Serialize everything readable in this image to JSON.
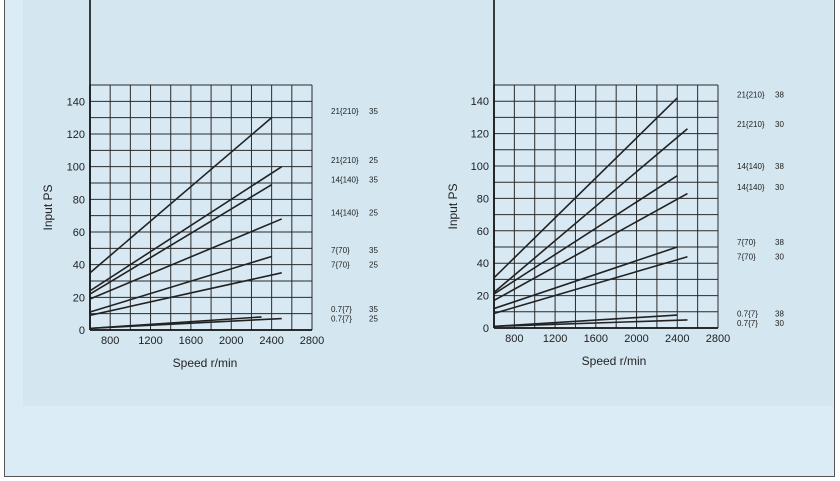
{
  "chart_data": [
    {
      "type": "line",
      "xlabel": "Speed r/min",
      "ylabel": "Input PS",
      "xticks": [
        800,
        1200,
        1600,
        2000,
        2400,
        2800
      ],
      "yticks": [
        0,
        20,
        40,
        60,
        80,
        100,
        120,
        140
      ],
      "xlim": [
        600,
        2800
      ],
      "ylim": [
        0,
        150
      ],
      "grid": true,
      "series": [
        {
          "name": "21{210} 35",
          "x": [
            600,
            2400
          ],
          "y": [
            35,
            130
          ]
        },
        {
          "name": "21{210} 25",
          "x": [
            600,
            2500
          ],
          "y": [
            24,
            100
          ]
        },
        {
          "name": "14{140} 35",
          "x": [
            600,
            2400
          ],
          "y": [
            22,
            89
          ]
        },
        {
          "name": "14{140} 25",
          "x": [
            600,
            2500
          ],
          "y": [
            19,
            68
          ]
        },
        {
          "name": "7{70} 35",
          "x": [
            600,
            2400
          ],
          "y": [
            11,
            45
          ]
        },
        {
          "name": "7{70} 25",
          "x": [
            600,
            2500
          ],
          "y": [
            9,
            35
          ]
        },
        {
          "name": "0.7{7} 35",
          "x": [
            600,
            2300
          ],
          "y": [
            1,
            8
          ]
        },
        {
          "name": "0.7{7} 25",
          "x": [
            600,
            2500
          ],
          "y": [
            1,
            7
          ]
        }
      ],
      "labels": [
        {
          "text": "21{210}",
          "num": "35",
          "y": 134
        },
        {
          "text": "21{210}",
          "num": "25",
          "y": 104
        },
        {
          "text": "14{140}",
          "num": "35",
          "y": 92
        },
        {
          "text": "14{140}",
          "num": "25",
          "y": 72
        },
        {
          "text": "7{70}",
          "num": "35",
          "y": 49
        },
        {
          "text": "7{70}",
          "num": "25",
          "y": 40
        },
        {
          "text": "0.7{7}",
          "num": "35",
          "y": 13
        },
        {
          "text": "0.7{7}",
          "num": "25",
          "y": 7
        }
      ]
    },
    {
      "type": "line",
      "xlabel": "Speed r/min",
      "ylabel": "Input PS",
      "xticks": [
        800,
        1200,
        1600,
        2000,
        2400,
        2800
      ],
      "yticks": [
        0,
        20,
        40,
        60,
        80,
        100,
        120,
        140
      ],
      "xlim": [
        600,
        2800
      ],
      "ylim": [
        0,
        150
      ],
      "grid": true,
      "series": [
        {
          "name": "21{210} 38",
          "x": [
            600,
            2400
          ],
          "y": [
            31,
            142
          ]
        },
        {
          "name": "21{210} 30",
          "x": [
            600,
            2500
          ],
          "y": [
            22,
            123
          ]
        },
        {
          "name": "14{140} 38",
          "x": [
            600,
            2400
          ],
          "y": [
            21,
            94
          ]
        },
        {
          "name": "14{140} 30",
          "x": [
            600,
            2500
          ],
          "y": [
            17,
            83
          ]
        },
        {
          "name": "7{70} 38",
          "x": [
            600,
            2400
          ],
          "y": [
            12,
            50
          ]
        },
        {
          "name": "7{70} 30",
          "x": [
            600,
            2500
          ],
          "y": [
            9,
            44
          ]
        },
        {
          "name": "0.7{7} 38",
          "x": [
            600,
            2400
          ],
          "y": [
            1,
            8
          ]
        },
        {
          "name": "0.7{7} 30",
          "x": [
            600,
            2500
          ],
          "y": [
            1,
            5
          ]
        }
      ],
      "labels": [
        {
          "text": "21{210}",
          "num": "38",
          "y": 144
        },
        {
          "text": "21{210}",
          "num": "30",
          "y": 126
        },
        {
          "text": "14{140}",
          "num": "38",
          "y": 100
        },
        {
          "text": "14{140}",
          "num": "30",
          "y": 87
        },
        {
          "text": "7{70}",
          "num": "38",
          "y": 53
        },
        {
          "text": "7{70}",
          "num": "30",
          "y": 44
        },
        {
          "text": "0.7{7}",
          "num": "38",
          "y": 9
        },
        {
          "text": "0.7{7}",
          "num": "30",
          "y": 3
        }
      ]
    }
  ]
}
